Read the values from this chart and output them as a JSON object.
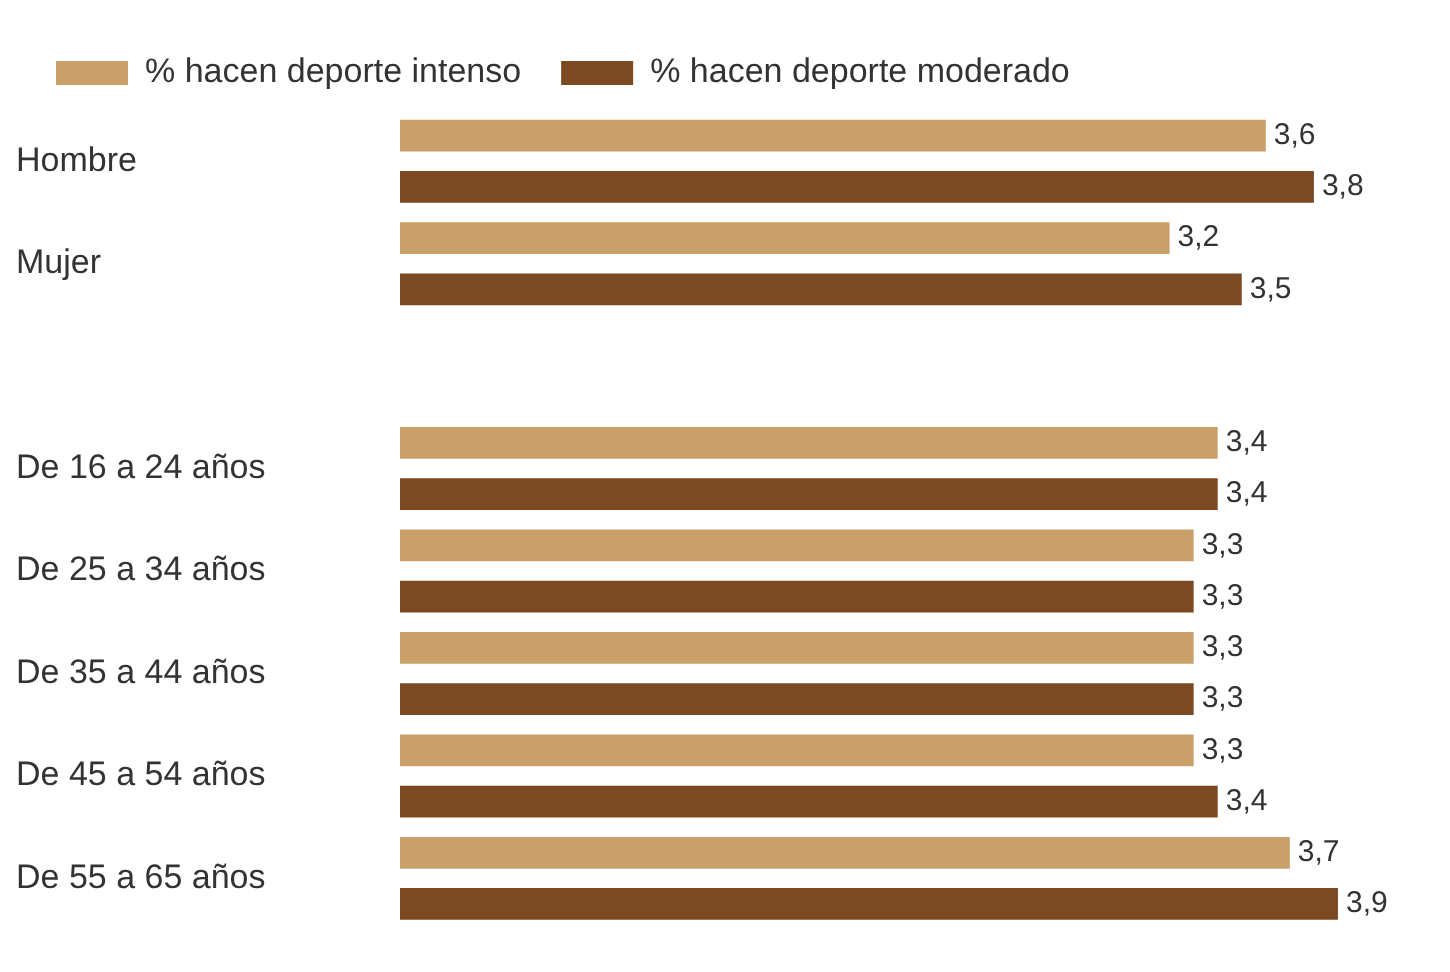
{
  "chart_data": {
    "type": "bar",
    "orientation": "horizontal",
    "categories": [
      "Hombre",
      "Mujer",
      null,
      "De 16 a 24 años",
      "De 25 a 34 años",
      "De 35 a 44 años",
      "De 45 a 54 años",
      "De 55 a 65 años"
    ],
    "series": [
      {
        "name": "% hacen deporte intenso",
        "color": "#c9a06a",
        "values": [
          3.6,
          3.2,
          null,
          3.4,
          3.3,
          3.3,
          3.3,
          3.7
        ],
        "value_labels": [
          "3,6",
          "3,2",
          null,
          "3,4",
          "3,3",
          "3,3",
          "3,3",
          "3,7"
        ]
      },
      {
        "name": "% hacen deporte moderado",
        "color": "#7b4a22",
        "values": [
          3.8,
          3.5,
          null,
          3.4,
          3.3,
          3.3,
          3.4,
          3.9
        ],
        "value_labels": [
          "3,8",
          "3,5",
          null,
          "3,4",
          "3,3",
          "3,3",
          "3,4",
          "3,9"
        ]
      }
    ],
    "tick_labels": "y",
    "grid": false,
    "legend": "top left"
  }
}
